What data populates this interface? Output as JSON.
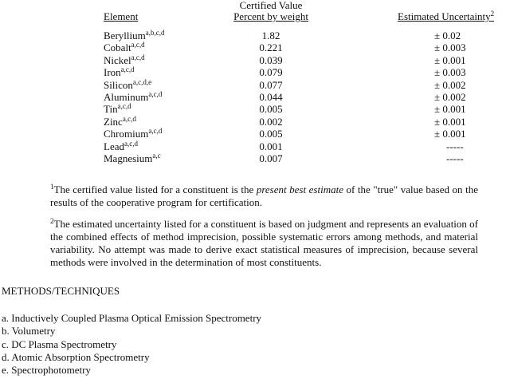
{
  "table": {
    "header_top": "Certified Value",
    "headers": [
      "Element",
      "Percent by weight",
      "Estimated Uncertainty"
    ],
    "uncertainty_footnote_mark": "2",
    "rows": [
      {
        "element": "Beryllium",
        "methods": "a,b,c,d",
        "percent": "1.82",
        "uncertainty": "± 0.02"
      },
      {
        "element": "Cobalt",
        "methods": "a,c,d",
        "percent": "0.221",
        "uncertainty": "± 0.003"
      },
      {
        "element": "Nickel",
        "methods": "a,c,d",
        "percent": "0.039",
        "uncertainty": "± 0.001"
      },
      {
        "element": "Iron",
        "methods": "a,c,d",
        "percent": "0.079",
        "uncertainty": "± 0.003"
      },
      {
        "element": "Silicon",
        "methods": "a,c,d,e",
        "percent": "0.077",
        "uncertainty": "± 0.002"
      },
      {
        "element": "Aluminum",
        "methods": "a,c,d",
        "percent": "0.044",
        "uncertainty": "± 0.002"
      },
      {
        "element": "Tin",
        "methods": "a,c,d",
        "percent": "0.005",
        "uncertainty": "± 0.001"
      },
      {
        "element": "Zinc",
        "methods": "a,c,d",
        "percent": "0.002",
        "uncertainty": "± 0.001"
      },
      {
        "element": "Chromium",
        "methods": "a,c,d",
        "percent": "0.005",
        "uncertainty": "± 0.001"
      },
      {
        "element": "Lead",
        "methods": "a,c,d",
        "percent": "0.001",
        "uncertainty": "-----"
      },
      {
        "element": "Magnesium",
        "methods": "a,c",
        "percent": "0.007",
        "uncertainty": "-----"
      }
    ]
  },
  "footnotes": {
    "f1_mark": "1",
    "f1_pre": "The certified value listed for a constituent is the ",
    "f1_em": "present best estimate",
    "f1_post": " of the \"true\" value based on the results of the cooperative program for certification.",
    "f2_mark": "2",
    "f2_text": "The estimated uncertainty listed for a constituent is based on judgment and represents an evaluation of the combined effects of method imprecision, possible systematic errors among methods, and material variability.  No attempt was made to derive exact statistical measures of imprecision, because several methods were involved in the determination of most constituents."
  },
  "methods": {
    "heading": "METHODS/TECHNIQUES",
    "items": [
      "a.  Inductively Coupled Plasma Optical Emission Spectrometry",
      "b.  Volumetry",
      "c.  DC Plasma Spectrometry",
      "d.  Atomic Absorption Spectrometry",
      "e.  Spectrophotometry"
    ]
  }
}
